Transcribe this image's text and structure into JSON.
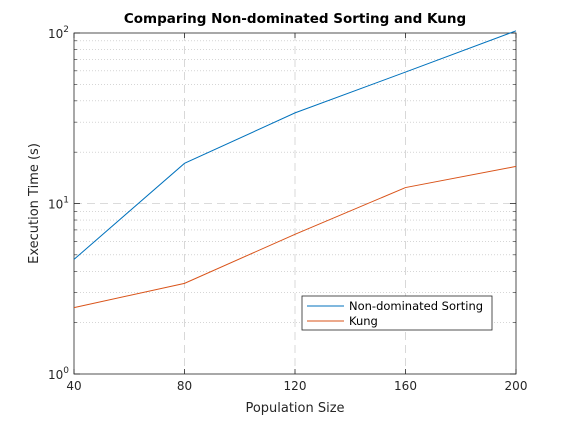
{
  "chart_data": {
    "type": "line",
    "title": "Comparing Non-dominated Sorting and Kung",
    "xlabel": "Population Size",
    "ylabel": "Execution Time (s)",
    "x": [
      40,
      80,
      120,
      160,
      200
    ],
    "xlim": [
      40,
      200
    ],
    "ylim": [
      1,
      100
    ],
    "yscale": "log",
    "x_ticks": [
      40,
      80,
      120,
      160,
      200
    ],
    "y_ticks": [
      {
        "base": "10",
        "exp": "0",
        "value": 1
      },
      {
        "base": "10",
        "exp": "1",
        "value": 10
      },
      {
        "base": "10",
        "exp": "2",
        "value": 100
      }
    ],
    "grid": true,
    "legend_position": "lower-right",
    "series": [
      {
        "name": "Non-dominated Sorting",
        "color": "#0072BD",
        "values": [
          4.7,
          17.2,
          34.0,
          59.0,
          103.0
        ]
      },
      {
        "name": "Kung",
        "color": "#D95319",
        "values": [
          2.45,
          3.4,
          6.6,
          12.4,
          16.5
        ]
      }
    ]
  }
}
